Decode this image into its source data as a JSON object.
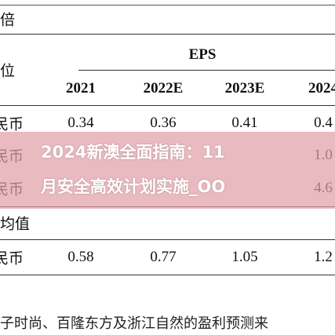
{
  "table": {
    "top_label": "倍",
    "unit_label": "位",
    "group_header": "EPS",
    "columns": [
      "2021",
      "2022E",
      "2023E",
      "2024"
    ],
    "rows": [
      {
        "label": "民币",
        "cells": [
          "0.34",
          "0.36",
          "0.41",
          "0.4"
        ]
      },
      {
        "label": "民币",
        "cells": [
          "",
          "",
          "",
          "1.0"
        ]
      },
      {
        "label": "民币",
        "cells": [
          "",
          "",
          "",
          "4.6"
        ]
      }
    ],
    "section_label": "均值",
    "average_row": {
      "label": "民币",
      "cells": [
        "0.58",
        "0.77",
        "1.05",
        "1.2"
      ]
    }
  },
  "footnote": "子时尚、百隆东方及浙江自然的盈利预测来",
  "overlay": {
    "lines": [
      "2024新澳全面指南：11",
      "月安全高效计划实施_OO"
    ]
  }
}
